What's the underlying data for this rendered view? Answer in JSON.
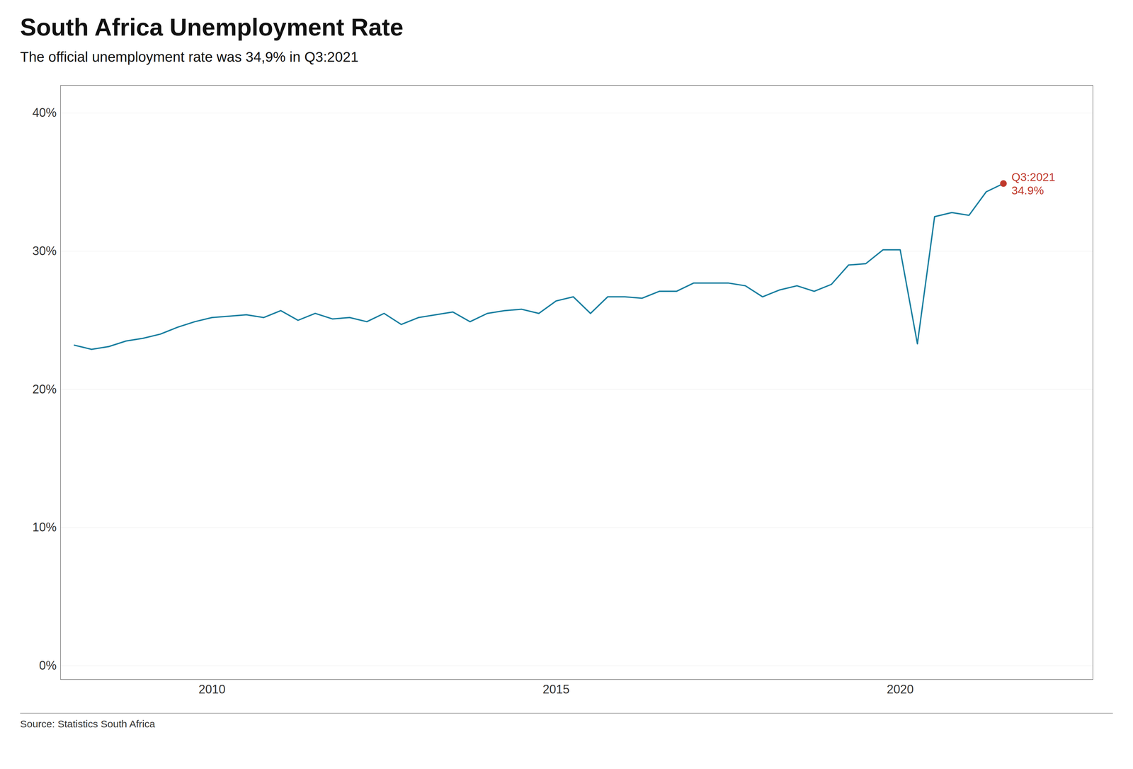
{
  "chart_data": {
    "type": "line",
    "title": "South Africa Unemployment Rate",
    "subtitle": "The official unemployment rate was 34,9% in Q3:2021",
    "source": "Source: Statistics South Africa",
    "color": "#1a7fa0",
    "x": [
      2008.0,
      2008.25,
      2008.5,
      2008.75,
      2009.0,
      2009.25,
      2009.5,
      2009.75,
      2010.0,
      2010.25,
      2010.5,
      2010.75,
      2011.0,
      2011.25,
      2011.5,
      2011.75,
      2012.0,
      2012.25,
      2012.5,
      2012.75,
      2013.0,
      2013.25,
      2013.5,
      2013.75,
      2014.0,
      2014.25,
      2014.5,
      2014.75,
      2015.0,
      2015.25,
      2015.5,
      2015.75,
      2016.0,
      2016.25,
      2016.5,
      2016.75,
      2017.0,
      2017.25,
      2017.5,
      2017.75,
      2018.0,
      2018.25,
      2018.5,
      2018.75,
      2019.0,
      2019.25,
      2019.5,
      2019.75,
      2020.0,
      2020.25,
      2020.5,
      2020.75,
      2021.0,
      2021.25,
      2021.5
    ],
    "values": [
      23.2,
      22.9,
      23.1,
      23.5,
      23.7,
      24.0,
      24.5,
      24.9,
      25.2,
      25.3,
      25.4,
      25.2,
      25.7,
      25.0,
      25.5,
      25.1,
      25.2,
      24.9,
      25.5,
      24.7,
      25.2,
      25.4,
      25.6,
      24.9,
      25.5,
      25.7,
      25.8,
      25.5,
      26.4,
      26.7,
      25.5,
      26.7,
      26.7,
      26.6,
      27.1,
      27.1,
      27.7,
      27.7,
      27.7,
      27.5,
      26.7,
      27.2,
      27.5,
      27.1,
      27.6,
      29.0,
      29.1,
      30.1,
      30.1,
      23.3,
      32.5,
      32.8,
      32.6,
      34.3,
      34.9
    ],
    "xlim": [
      2007.8,
      2022.8
    ],
    "xticks": [
      2010,
      2015,
      2020
    ],
    "ylim": [
      -1,
      42
    ],
    "yticks": [
      {
        "value": 0,
        "label": "0%"
      },
      {
        "value": 10,
        "label": "10%"
      },
      {
        "value": 20,
        "label": "20%"
      },
      {
        "value": 30,
        "label": "30%"
      },
      {
        "value": 40,
        "label": "40%"
      }
    ],
    "grid": true,
    "annotations": [
      {
        "x": 2021.5,
        "y": 34.9,
        "text": [
          "Q3:2021",
          "34.9%"
        ],
        "color": "#c0392b",
        "marker": "circle"
      }
    ]
  }
}
